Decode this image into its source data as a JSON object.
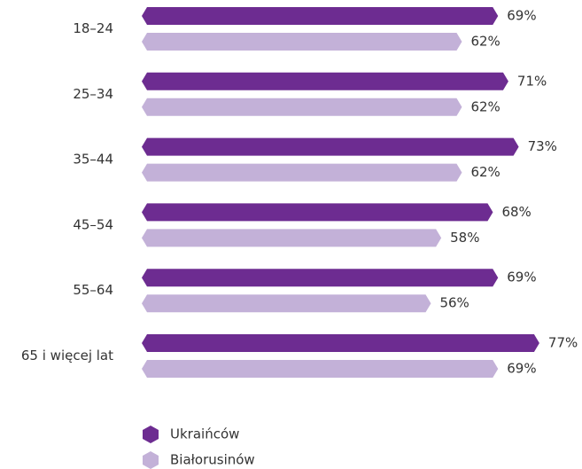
{
  "chart_data": {
    "type": "bar",
    "orientation": "horizontal",
    "categories": [
      "18–24",
      "25–34",
      "35–44",
      "45–54",
      "55–64",
      "65 i więcej lat"
    ],
    "series": [
      {
        "name": "Ukraińców",
        "color": "#6d2c91",
        "values": [
          69,
          71,
          73,
          68,
          69,
          77
        ],
        "value_labels": [
          "69%",
          "71%",
          "73%",
          "68%",
          "69%",
          "77%"
        ]
      },
      {
        "name": "Białorusinów",
        "color": "#c3b1d8",
        "values": [
          62,
          62,
          62,
          58,
          56,
          69
        ],
        "value_labels": [
          "62%",
          "62%",
          "62%",
          "58%",
          "56%",
          "69%"
        ]
      }
    ],
    "legend": "bottom-left"
  }
}
